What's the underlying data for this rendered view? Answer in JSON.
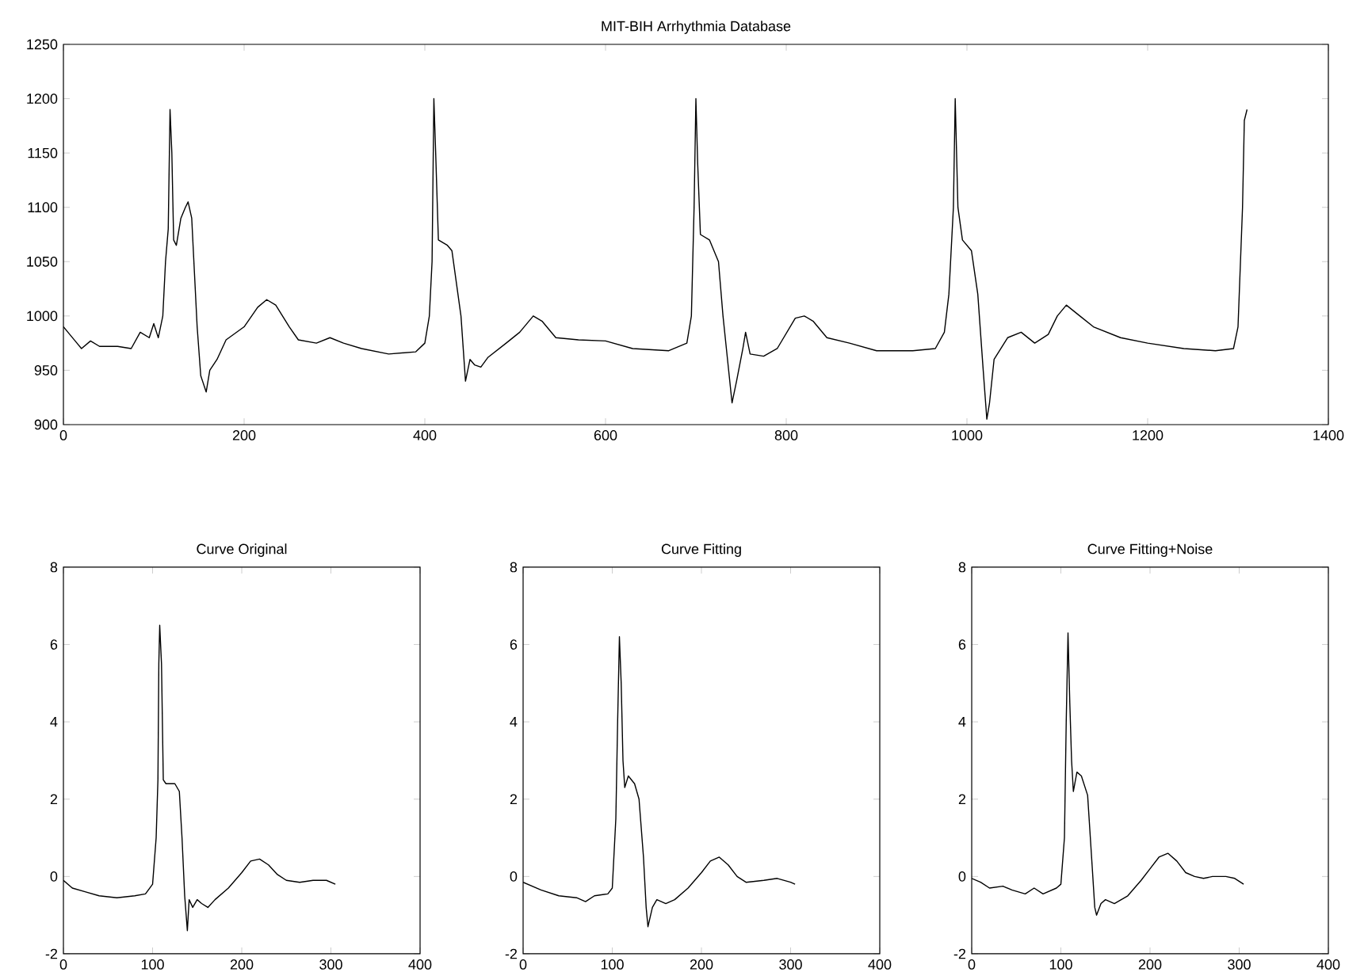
{
  "chart_data": [
    {
      "type": "line",
      "title": "MIT-BIH Arrhythmia Database",
      "xlim": [
        0,
        1400
      ],
      "ylim": [
        900,
        1250
      ],
      "xticks": [
        0,
        200,
        400,
        600,
        800,
        1000,
        1200,
        1400
      ],
      "yticks": [
        900,
        950,
        1000,
        1050,
        1100,
        1150,
        1200,
        1250
      ],
      "series": [
        {
          "color": "#000000",
          "x": [
            0,
            5,
            15,
            20,
            30,
            40,
            60,
            75,
            85,
            95,
            100,
            105,
            110,
            113,
            116,
            118,
            120,
            122,
            125,
            130,
            135,
            138,
            142,
            145,
            148,
            152,
            158,
            162,
            170,
            180,
            200,
            215,
            225,
            235,
            250,
            260,
            280,
            295,
            310,
            330,
            360,
            390,
            400,
            405,
            408,
            410,
            412,
            415,
            425,
            430,
            440,
            445,
            450,
            455,
            462,
            470,
            490,
            505,
            520,
            530,
            545,
            570,
            600,
            630,
            670,
            690,
            695,
            698,
            700,
            702,
            705,
            715,
            725,
            730,
            735,
            740,
            745,
            752,
            755,
            760,
            775,
            790,
            810,
            820,
            830,
            845,
            870,
            900,
            940,
            965,
            975,
            980,
            985,
            987,
            990,
            995,
            1005,
            1012,
            1018,
            1022,
            1025,
            1030,
            1045,
            1060,
            1075,
            1090,
            1100,
            1110,
            1125,
            1140,
            1170,
            1200,
            1240,
            1275,
            1295,
            1300,
            1305,
            1307,
            1310
          ],
          "values": [
            990,
            985,
            975,
            970,
            977,
            972,
            972,
            970,
            985,
            980,
            993,
            980,
            1000,
            1050,
            1080,
            1190,
            1150,
            1070,
            1065,
            1090,
            1100,
            1105,
            1090,
            1040,
            990,
            945,
            930,
            950,
            960,
            978,
            990,
            1008,
            1015,
            1010,
            990,
            978,
            975,
            980,
            975,
            970,
            965,
            967,
            975,
            1000,
            1050,
            1200,
            1150,
            1070,
            1065,
            1060,
            1000,
            940,
            960,
            955,
            953,
            962,
            975,
            985,
            1000,
            995,
            980,
            978,
            977,
            970,
            968,
            975,
            1000,
            1100,
            1200,
            1140,
            1075,
            1070,
            1050,
            1000,
            960,
            920,
            940,
            970,
            985,
            965,
            963,
            970,
            998,
            1000,
            995,
            980,
            975,
            968,
            968,
            970,
            985,
            1020,
            1100,
            1200,
            1100,
            1070,
            1060,
            1020,
            950,
            905,
            920,
            960,
            980,
            985,
            975,
            983,
            1000,
            1010,
            1000,
            990,
            980,
            975,
            970,
            968,
            970,
            990,
            1100,
            1180,
            1190
          ]
        }
      ]
    },
    {
      "type": "line",
      "title": "Curve Original",
      "xlim": [
        0,
        400
      ],
      "ylim": [
        -2,
        8
      ],
      "xticks": [
        0,
        100,
        200,
        300,
        400
      ],
      "yticks": [
        -2,
        0,
        2,
        4,
        6,
        8
      ],
      "series": [
        {
          "color": "#000000",
          "x": [
            0,
            10,
            25,
            40,
            60,
            80,
            92,
            100,
            104,
            106,
            107,
            108,
            110,
            112,
            115,
            125,
            130,
            133,
            136,
            139,
            141,
            145,
            150,
            155,
            162,
            170,
            185,
            200,
            210,
            220,
            230,
            240,
            250,
            265,
            280,
            295,
            305
          ],
          "values": [
            -0.1,
            -0.3,
            -0.4,
            -0.5,
            -0.55,
            -0.5,
            -0.45,
            -0.2,
            1,
            2.5,
            5.5,
            6.5,
            5.5,
            2.5,
            2.4,
            2.4,
            2.2,
            1,
            -0.5,
            -1.4,
            -0.6,
            -0.8,
            -0.6,
            -0.7,
            -0.8,
            -0.6,
            -0.3,
            0.1,
            0.4,
            0.45,
            0.3,
            0.05,
            -0.1,
            -0.15,
            -0.1,
            -0.1,
            -0.2
          ]
        }
      ]
    },
    {
      "type": "line",
      "title": "Curve Fitting",
      "xlim": [
        0,
        400
      ],
      "ylim": [
        -2,
        8
      ],
      "xticks": [
        0,
        100,
        200,
        300,
        400
      ],
      "yticks": [
        -2,
        0,
        2,
        4,
        6,
        8
      ],
      "series": [
        {
          "color": "#000000",
          "x": [
            0,
            20,
            40,
            60,
            70,
            80,
            95,
            100,
            104,
            106,
            108,
            110,
            112,
            114,
            118,
            125,
            130,
            135,
            138,
            140,
            145,
            150,
            160,
            170,
            185,
            200,
            210,
            220,
            230,
            240,
            250,
            270,
            285,
            300,
            305
          ],
          "values": [
            -0.15,
            -0.35,
            -0.5,
            -0.55,
            -0.65,
            -0.5,
            -0.45,
            -0.3,
            1.5,
            4,
            6.2,
            5,
            3,
            2.3,
            2.6,
            2.4,
            2,
            0.5,
            -0.8,
            -1.3,
            -0.8,
            -0.6,
            -0.7,
            -0.6,
            -0.3,
            0.1,
            0.4,
            0.5,
            0.3,
            0,
            -0.15,
            -0.1,
            -0.05,
            -0.15,
            -0.2
          ]
        }
      ]
    },
    {
      "type": "line",
      "title": "Curve Fitting+Noise",
      "xlim": [
        0,
        400
      ],
      "ylim": [
        -2,
        8
      ],
      "xticks": [
        0,
        100,
        200,
        300,
        400
      ],
      "yticks": [
        -2,
        0,
        2,
        4,
        6,
        8
      ],
      "series": [
        {
          "color": "#000000",
          "x": [
            0,
            10,
            20,
            35,
            45,
            60,
            70,
            80,
            95,
            100,
            104,
            106,
            108,
            110,
            112,
            114,
            118,
            123,
            130,
            135,
            138,
            140,
            145,
            150,
            160,
            175,
            190,
            200,
            210,
            220,
            230,
            240,
            250,
            260,
            270,
            285,
            295,
            305
          ],
          "values": [
            -0.05,
            -0.15,
            -0.3,
            -0.25,
            -0.35,
            -0.45,
            -0.3,
            -0.45,
            -0.3,
            -0.2,
            1,
            4,
            6.3,
            4.5,
            3,
            2.2,
            2.7,
            2.6,
            2.1,
            0.3,
            -0.8,
            -1.0,
            -0.7,
            -0.6,
            -0.7,
            -0.5,
            -0.1,
            0.2,
            0.5,
            0.6,
            0.4,
            0.1,
            0,
            -0.05,
            0,
            0,
            -0.05,
            -0.2
          ]
        }
      ]
    }
  ]
}
